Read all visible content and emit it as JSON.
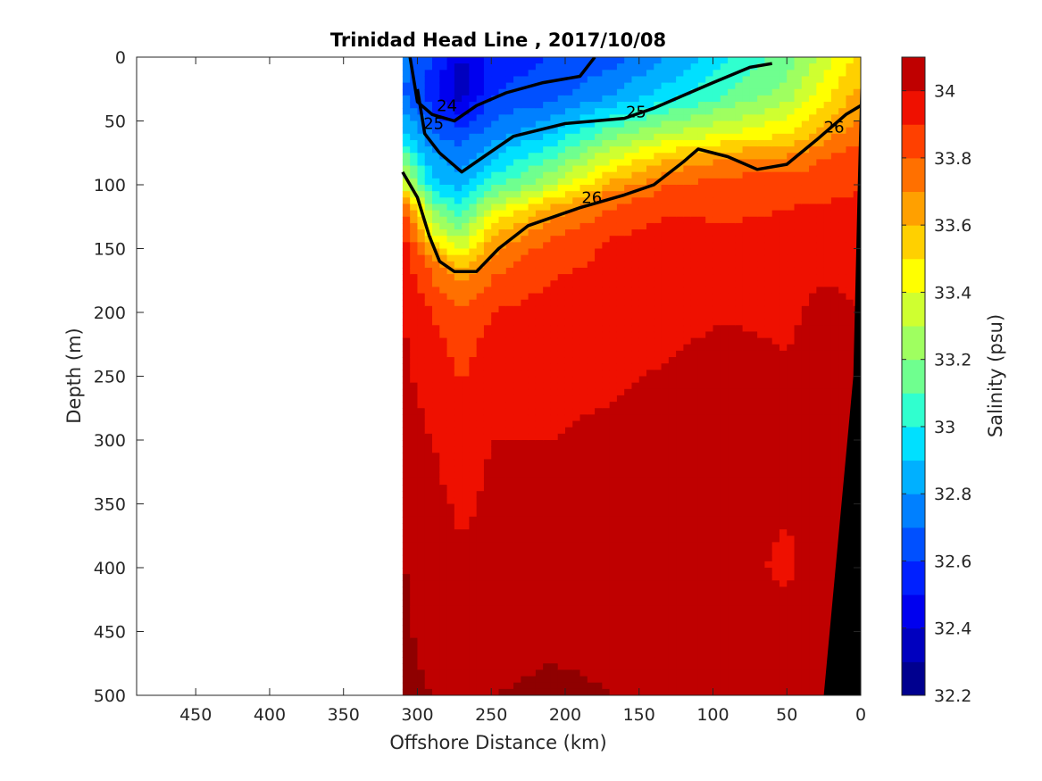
{
  "chart_data": {
    "type": "heatmap",
    "title": "Trinidad Head Line , 2017/10/08",
    "xlabel": "Offshore Distance (km)",
    "ylabel": "Depth (m)",
    "xlim": [
      490,
      0
    ],
    "ylim": [
      0,
      500
    ],
    "x_ticks": [
      450,
      400,
      350,
      300,
      250,
      200,
      150,
      100,
      50,
      0
    ],
    "y_ticks": [
      0,
      50,
      100,
      150,
      200,
      250,
      300,
      350,
      400,
      450,
      500
    ],
    "data_start_x": 310,
    "colorbar": {
      "label": "Salinity (psu)",
      "min": 32.2,
      "max": 34.1,
      "ticks": [
        32.2,
        32.4,
        32.6,
        32.8,
        33,
        33.2,
        33.4,
        33.6,
        33.8,
        34
      ],
      "levels": [
        32.2,
        32.3,
        32.4,
        32.5,
        32.6,
        32.7,
        32.8,
        32.9,
        33.0,
        33.1,
        33.2,
        33.3,
        33.4,
        33.5,
        33.6,
        33.7,
        33.8,
        33.9,
        34.0,
        34.1
      ],
      "colors": [
        "#00008f",
        "#0000bf",
        "#0000ef",
        "#0020ff",
        "#0050ff",
        "#0080ff",
        "#00b0ff",
        "#00e0ff",
        "#30ffcf",
        "#6fff8f",
        "#9fff60",
        "#cfff30",
        "#ffff00",
        "#ffd000",
        "#ffa000",
        "#ff7000",
        "#ff4000",
        "#ef1000",
        "#bf0000",
        "#8f0000"
      ]
    },
    "salinity_profiles": [
      {
        "x": 310,
        "depth_salinity": [
          [
            0,
            32.75
          ],
          [
            30,
            32.7
          ],
          [
            60,
            32.95
          ],
          [
            100,
            33.4
          ],
          [
            120,
            33.85
          ],
          [
            140,
            33.95
          ],
          [
            200,
            34.0
          ],
          [
            300,
            34.05
          ],
          [
            360,
            34.1
          ],
          [
            500,
            34.12
          ]
        ]
      },
      {
        "x": 290,
        "depth_salinity": [
          [
            0,
            32.6
          ],
          [
            30,
            32.55
          ],
          [
            60,
            32.7
          ],
          [
            100,
            32.95
          ],
          [
            140,
            33.45
          ],
          [
            160,
            33.75
          ],
          [
            200,
            33.9
          ],
          [
            300,
            34.0
          ],
          [
            400,
            34.05
          ],
          [
            500,
            34.1
          ]
        ]
      },
      {
        "x": 270,
        "depth_salinity": [
          [
            0,
            32.4
          ],
          [
            25,
            32.3
          ],
          [
            60,
            32.65
          ],
          [
            100,
            32.85
          ],
          [
            140,
            33.25
          ],
          [
            170,
            33.65
          ],
          [
            210,
            33.85
          ],
          [
            300,
            33.95
          ],
          [
            450,
            34.05
          ],
          [
            500,
            34.1
          ]
        ]
      },
      {
        "x": 250,
        "depth_salinity": [
          [
            0,
            32.55
          ],
          [
            30,
            32.6
          ],
          [
            60,
            32.75
          ],
          [
            100,
            33.05
          ],
          [
            130,
            33.5
          ],
          [
            160,
            33.75
          ],
          [
            200,
            33.9
          ],
          [
            300,
            34.0
          ],
          [
            450,
            34.05
          ],
          [
            500,
            34.1
          ]
        ]
      },
      {
        "x": 210,
        "depth_salinity": [
          [
            0,
            32.6
          ],
          [
            30,
            32.65
          ],
          [
            60,
            32.9
          ],
          [
            100,
            33.3
          ],
          [
            120,
            33.65
          ],
          [
            150,
            33.85
          ],
          [
            200,
            33.95
          ],
          [
            300,
            34.0
          ],
          [
            450,
            34.08
          ],
          [
            500,
            34.12
          ]
        ]
      },
      {
        "x": 170,
        "depth_salinity": [
          [
            0,
            32.65
          ],
          [
            30,
            32.8
          ],
          [
            60,
            33.15
          ],
          [
            90,
            33.5
          ],
          [
            110,
            33.75
          ],
          [
            140,
            33.9
          ],
          [
            200,
            33.95
          ],
          [
            300,
            34.02
          ],
          [
            450,
            34.08
          ],
          [
            500,
            34.1
          ]
        ]
      },
      {
        "x": 130,
        "depth_salinity": [
          [
            0,
            32.8
          ],
          [
            30,
            32.95
          ],
          [
            60,
            33.3
          ],
          [
            80,
            33.6
          ],
          [
            100,
            33.8
          ],
          [
            130,
            33.92
          ],
          [
            200,
            33.97
          ],
          [
            300,
            34.05
          ],
          [
            450,
            34.08
          ],
          [
            500,
            34.1
          ]
        ]
      },
      {
        "x": 90,
        "depth_salinity": [
          [
            0,
            33.0
          ],
          [
            30,
            33.1
          ],
          [
            60,
            33.4
          ],
          [
            80,
            33.7
          ],
          [
            100,
            33.85
          ],
          [
            150,
            33.93
          ],
          [
            250,
            34.05
          ],
          [
            350,
            34.02
          ],
          [
            450,
            34.06
          ],
          [
            500,
            34.1
          ]
        ]
      },
      {
        "x": 50,
        "depth_salinity": [
          [
            0,
            33.15
          ],
          [
            30,
            33.25
          ],
          [
            60,
            33.5
          ],
          [
            80,
            33.72
          ],
          [
            100,
            33.87
          ],
          [
            150,
            33.95
          ],
          [
            300,
            34.04
          ],
          [
            400,
            33.98
          ],
          [
            450,
            34.04
          ],
          [
            500,
            34.1
          ]
        ]
      },
      {
        "x": 25,
        "depth_salinity": [
          [
            0,
            33.35
          ],
          [
            30,
            33.45
          ],
          [
            60,
            33.65
          ],
          [
            80,
            33.8
          ],
          [
            120,
            33.92
          ],
          [
            200,
            34.03
          ],
          [
            300,
            34.05
          ],
          [
            400,
            34.05
          ],
          [
            500,
            34.1
          ]
        ]
      },
      {
        "x": 5,
        "depth_salinity": [
          [
            0,
            33.5
          ],
          [
            40,
            33.65
          ],
          [
            80,
            33.85
          ],
          [
            150,
            33.98
          ],
          [
            300,
            34.05
          ],
          [
            500,
            34.1
          ]
        ]
      }
    ],
    "isopycnals": [
      {
        "label": "24",
        "points": [
          [
            305,
            0
          ],
          [
            300,
            35
          ],
          [
            290,
            45
          ],
          [
            275,
            50
          ],
          [
            260,
            38
          ],
          [
            240,
            28
          ],
          [
            215,
            20
          ],
          [
            190,
            15
          ],
          [
            180,
            0
          ]
        ]
      },
      {
        "label": "25",
        "points": [
          [
            300,
            25
          ],
          [
            295,
            60
          ],
          [
            285,
            75
          ],
          [
            270,
            90
          ],
          [
            255,
            78
          ],
          [
            235,
            62
          ],
          [
            200,
            52
          ],
          [
            160,
            48
          ],
          [
            140,
            40
          ],
          [
            120,
            30
          ],
          [
            100,
            20
          ],
          [
            75,
            8
          ],
          [
            60,
            5
          ]
        ]
      },
      {
        "label": "26",
        "points": [
          [
            310,
            90
          ],
          [
            300,
            110
          ],
          [
            292,
            140
          ],
          [
            285,
            160
          ],
          [
            275,
            168
          ],
          [
            260,
            168
          ],
          [
            245,
            150
          ],
          [
            225,
            132
          ],
          [
            190,
            118
          ],
          [
            160,
            108
          ],
          [
            140,
            100
          ],
          [
            120,
            82
          ],
          [
            110,
            72
          ],
          [
            90,
            78
          ],
          [
            70,
            88
          ],
          [
            50,
            84
          ],
          [
            30,
            65
          ],
          [
            10,
            45
          ],
          [
            0,
            38
          ]
        ]
      }
    ],
    "contour_labels": [
      {
        "text": "24",
        "x": 280,
        "y": 38
      },
      {
        "text": "25",
        "x": 289,
        "y": 52
      },
      {
        "text": "25",
        "x": 152,
        "y": 43
      },
      {
        "text": "26",
        "x": 182,
        "y": 110
      },
      {
        "text": "26",
        "x": 18,
        "y": 55
      }
    ],
    "bathymetry": [
      [
        25,
        500
      ],
      [
        5,
        250
      ],
      [
        2,
        100
      ],
      [
        0,
        10
      ],
      [
        0,
        500
      ]
    ]
  }
}
